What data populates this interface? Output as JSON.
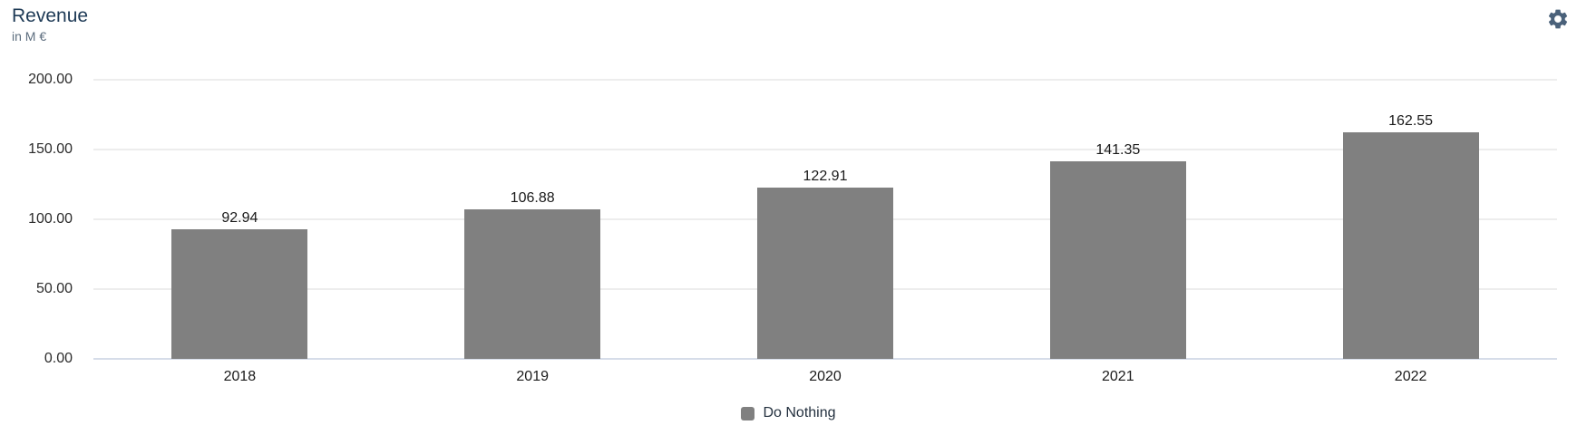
{
  "header": {
    "title": "Revenue",
    "subtitle": "in M €"
  },
  "colors": {
    "bar": "#808080",
    "grid": "#ededed",
    "axis_baseline": "#d6dde9",
    "title": "#1e3a56",
    "subtitle": "#5c6d7e",
    "tick_label": "#2b2b2b",
    "data_label": "#1a1a1a",
    "legend_label": "#24313f",
    "gear": "#4a617a"
  },
  "icons": {
    "settings": "gear-icon"
  },
  "chart_data": {
    "type": "bar",
    "title": "Revenue",
    "subtitle": "in M €",
    "categories": [
      "2018",
      "2019",
      "2020",
      "2021",
      "2022"
    ],
    "series": [
      {
        "name": "Do Nothing",
        "values": [
          92.94,
          106.88,
          122.91,
          141.35,
          162.55
        ]
      }
    ],
    "value_labels": [
      "92.94",
      "106.88",
      "122.91",
      "141.35",
      "162.55"
    ],
    "ylabel": "in M €",
    "ylim": [
      0,
      200
    ],
    "ytick_step": 50,
    "ytick_labels": [
      "0.00",
      "50.00",
      "100.00",
      "150.00",
      "200.00"
    ],
    "grid": "horizontal",
    "legend_position": "bottom-center"
  }
}
